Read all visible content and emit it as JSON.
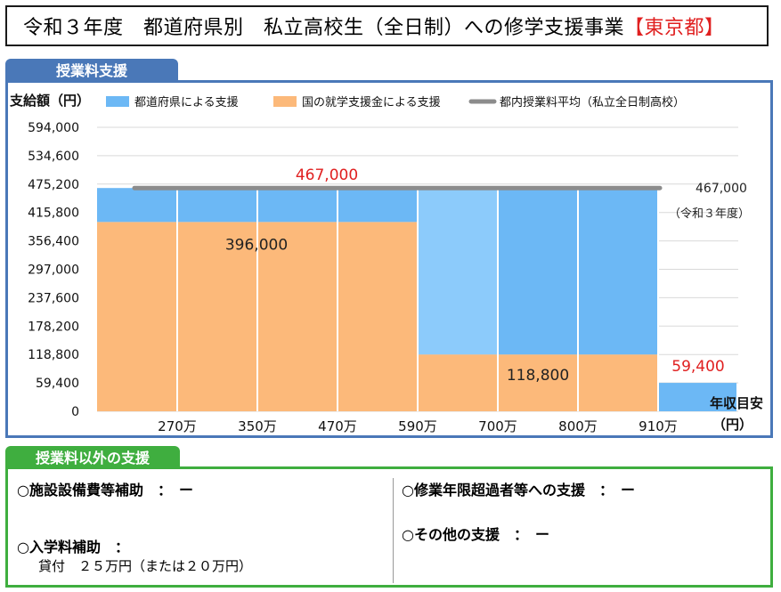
{
  "header": {
    "title_main": "令和３年度　都道府県別　私立高校生（全日制）への修学支援事業",
    "title_pref": "【東京都】"
  },
  "tabs": {
    "tuition": "授業料支援",
    "other": "授業料以外の支援"
  },
  "other_support": {
    "facility": "○施設設備費等補助　：　ー",
    "admission": "○入学料補助　：",
    "admission_detail": "貸付　２５万円（または２０万円）",
    "over_years": "○修業年限超過者等への支援　：　ー",
    "other": "○その他の支援　：　ー"
  },
  "colors": {
    "prefecture": "#6cb8f5",
    "prefecture_light": "#8ccbfb",
    "national": "#fcb97a",
    "average_line": "#8c8c8c",
    "highlight_text": "#e02020",
    "tab_blue": "#4a78b8",
    "tab_green": "#3fae3f"
  },
  "chart_data": {
    "type": "bar",
    "title": "",
    "ylabel": "支給額（円）",
    "xlabel": "年収目安\n（円）",
    "ylim": [
      0,
      594000
    ],
    "yticks": [
      0,
      59400,
      118800,
      178200,
      237600,
      297000,
      356400,
      415800,
      475200,
      534600,
      594000
    ],
    "ytick_labels": [
      "0",
      "59,400",
      "118,800",
      "178,200",
      "237,600",
      "297,000",
      "356,400",
      "415,800",
      "475,200",
      "534,600",
      "594,000"
    ],
    "x_boundaries": [
      "",
      "270万",
      "350万",
      "470万",
      "590万",
      "700万",
      "800万",
      "910万"
    ],
    "legend": [
      "都道府県による支援",
      "国の就学支援金による支援",
      "都内授業料平均（私立全日制高校）"
    ],
    "legend_position": "top",
    "series": [
      {
        "name": "国の就学支援金による支援",
        "values": [
          396000,
          396000,
          396000,
          396000,
          118800,
          118800,
          118800,
          0
        ]
      },
      {
        "name": "都道府県による支援",
        "values": [
          71000,
          71000,
          71000,
          71000,
          348200,
          348200,
          348200,
          59400
        ]
      }
    ],
    "average": {
      "value": 467000,
      "label": "467,000",
      "note": "（令和３年度）"
    },
    "annotations": {
      "total": "467,000",
      "national_upper": "396,000",
      "national_lower": "118,800",
      "last_band": "59,400"
    }
  }
}
